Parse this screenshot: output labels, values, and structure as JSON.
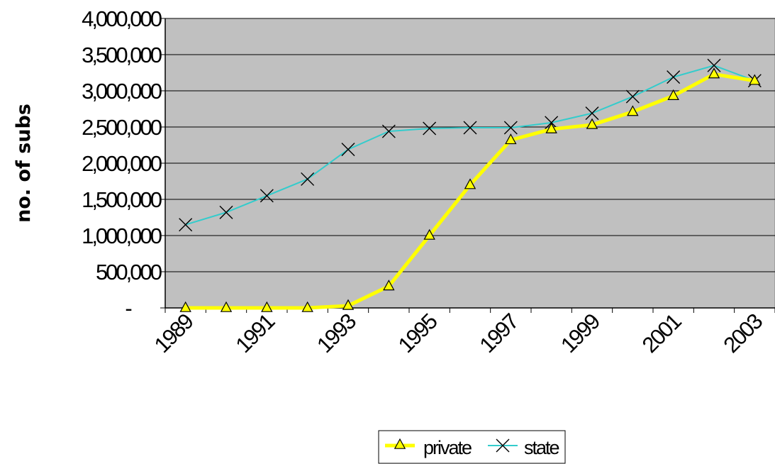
{
  "chart_data": {
    "type": "line",
    "x": [
      1989,
      1990,
      1991,
      1992,
      1993,
      1994,
      1995,
      1996,
      1997,
      1998,
      1999,
      2000,
      2001,
      2002,
      2003
    ],
    "x_tick_labels": [
      "1989",
      "1991",
      "1993",
      "1995",
      "1997",
      "1999",
      "2001",
      "2003"
    ],
    "y_tick_labels": [
      "-",
      "500,000",
      "1,000,000",
      "1,500,000",
      "2,000,000",
      "2,500,000",
      "3,000,000",
      "3,500,000",
      "4,000,000"
    ],
    "ylim": [
      0,
      4000000
    ],
    "ylabel": "no. of subs",
    "xlabel": "",
    "grid": true,
    "legend_position": "bottom",
    "plot_background": "#c0c0c0",
    "series": [
      {
        "name": "private",
        "color": "#ffff00",
        "marker": "triangle",
        "values": [
          0,
          0,
          0,
          0,
          30000,
          300000,
          1000000,
          1700000,
          2320000,
          2470000,
          2530000,
          2710000,
          2930000,
          3230000,
          3140000
        ]
      },
      {
        "name": "state",
        "color": "#33cccc",
        "marker": "x",
        "values": [
          1150000,
          1320000,
          1550000,
          1780000,
          2190000,
          2440000,
          2480000,
          2490000,
          2490000,
          2560000,
          2690000,
          2920000,
          3190000,
          3350000,
          3140000
        ]
      }
    ]
  }
}
